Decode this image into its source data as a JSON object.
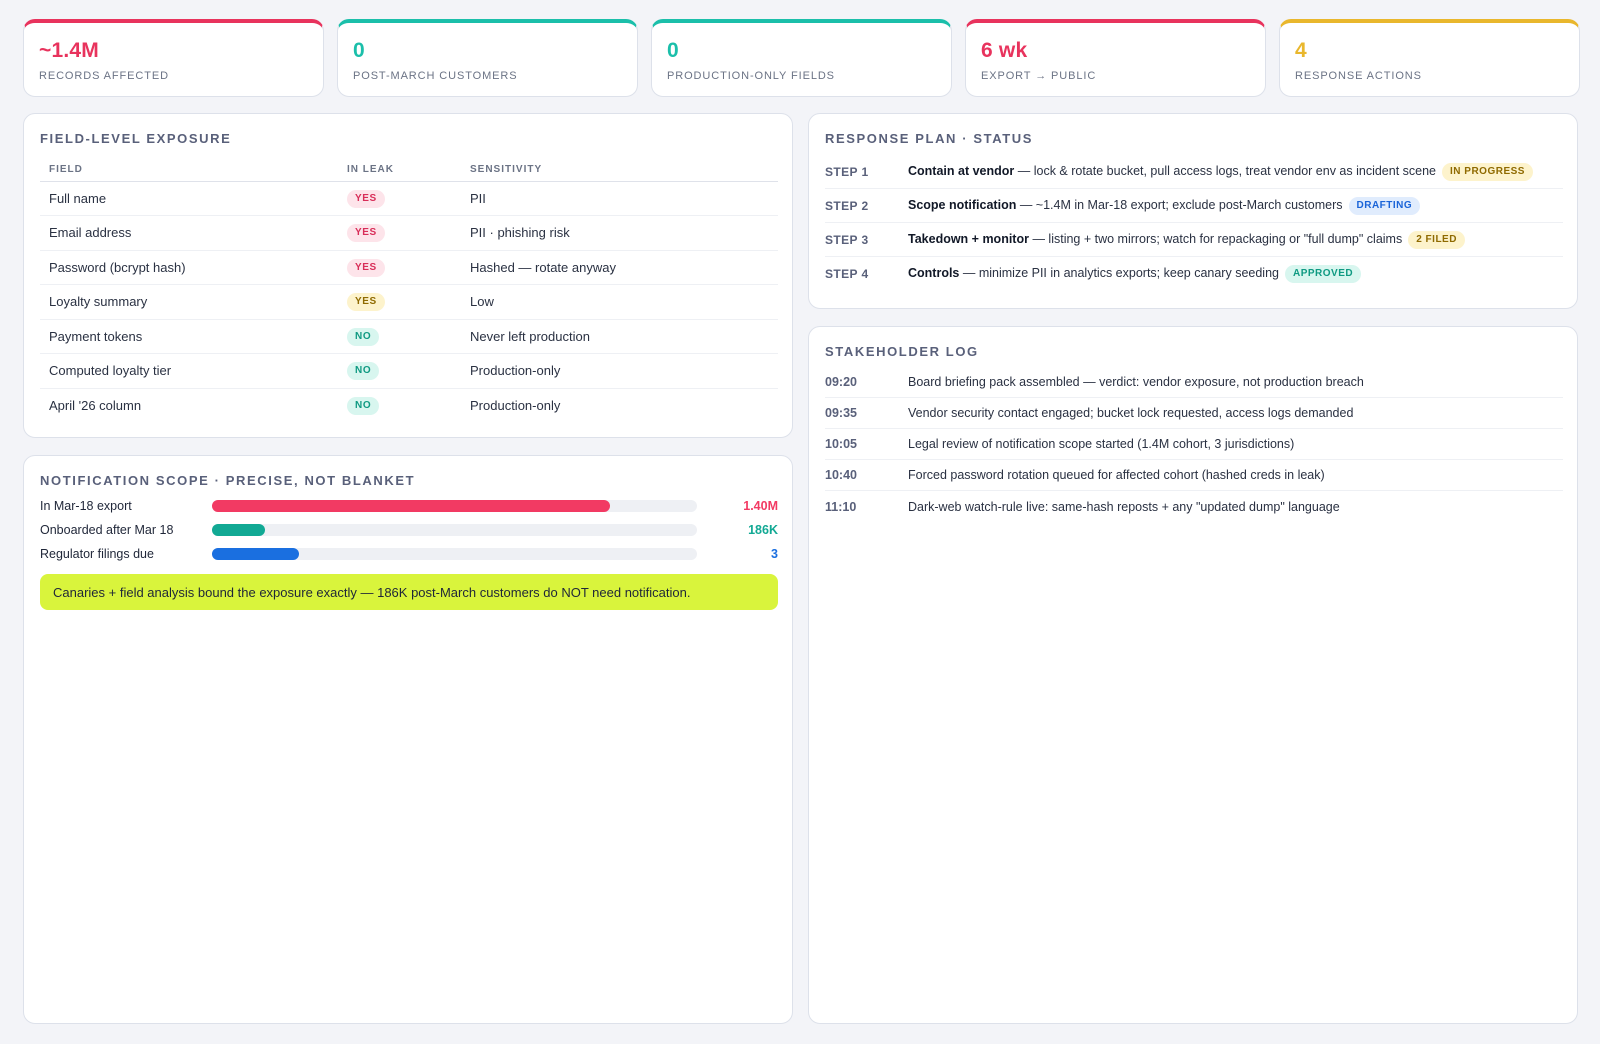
{
  "kpis": [
    {
      "value": "~1.4M",
      "label": "RECORDS AFFECTED",
      "color": "#e8335d"
    },
    {
      "value": "0",
      "label": "POST-MARCH CUSTOMERS",
      "color": "#1bbfaa"
    },
    {
      "value": "0",
      "label": "PRODUCTION-ONLY FIELDS",
      "color": "#1bbfaa"
    },
    {
      "value": "6 wk",
      "label": "EXPORT → PUBLIC",
      "color": "#e8335d"
    },
    {
      "value": "4",
      "label": "RESPONSE ACTIONS",
      "color": "#e9b72d"
    }
  ],
  "field_exposure": {
    "title": "FIELD-LEVEL EXPOSURE",
    "columns": [
      "FIELD",
      "IN LEAK",
      "SENSITIVITY"
    ],
    "rows": [
      {
        "field": "Full name",
        "in_leak": "YES",
        "sensitivity": "PII"
      },
      {
        "field": "Email address",
        "in_leak": "YES",
        "sensitivity": "PII · phishing risk"
      },
      {
        "field": "Password (bcrypt hash)",
        "in_leak": "YES",
        "sensitivity": "Hashed — rotate anyway"
      },
      {
        "field": "Loyalty summary",
        "in_leak": "YES",
        "sensitivity": "Low"
      },
      {
        "field": "Payment tokens",
        "in_leak": "NO",
        "sensitivity": "Never left production"
      },
      {
        "field": "Computed loyalty tier",
        "in_leak": "NO",
        "sensitivity": "Production-only"
      },
      {
        "field": "April '26 column",
        "in_leak": "NO",
        "sensitivity": "Production-only"
      }
    ]
  },
  "notification_scope": {
    "title": "NOTIFICATION SCOPE · PRECISE, NOT BLANKET",
    "bars": [
      {
        "label": "In Mar-18 export",
        "value": "1.40M",
        "fraction": 0.82,
        "color": "#f23a63"
      },
      {
        "label": "Onboarded after Mar 18",
        "value": "186K",
        "fraction": 0.11,
        "color": "#12a994"
      },
      {
        "label": "Regulator filings due",
        "value": "3",
        "fraction": 0.18,
        "color": "#1a6fe0"
      }
    ],
    "callout": "Canaries + field analysis bound the exposure exactly — 186K post-March customers do NOT need notification."
  },
  "response_plan": {
    "title": "RESPONSE PLAN · STATUS",
    "steps": [
      {
        "num": "STEP 1",
        "head": "Contain at vendor",
        "text": " — lock & rotate bucket, pull access logs, treat vendor env as incident scene",
        "tag": "IN PROGRESS"
      },
      {
        "num": "STEP 2",
        "head": "Scope notification",
        "text": " — ~1.4M in Mar-18 export; exclude post-March customers",
        "tag": "DRAFTING"
      },
      {
        "num": "STEP 3",
        "head": "Takedown + monitor",
        "text": " — listing + two mirrors; watch for repackaging or \"full dump\" claims",
        "tag": "2 FILED"
      },
      {
        "num": "STEP 4",
        "head": "Controls",
        "text": " — minimize PII in analytics exports; keep canary seeding",
        "tag": "APPROVED"
      }
    ]
  },
  "stakeholder_log": {
    "title": "STAKEHOLDER LOG",
    "entries": [
      {
        "time": "09:20",
        "text": "Board briefing pack assembled — verdict: vendor exposure, not production breach"
      },
      {
        "time": "09:35",
        "text": "Vendor security contact engaged; bucket lock requested, access logs demanded"
      },
      {
        "time": "10:05",
        "text": "Legal review of notification scope started (1.4M cohort, 3 jurisdictions)"
      },
      {
        "time": "10:40",
        "text": "Forced password rotation queued for affected cohort (hashed creds in leak)"
      },
      {
        "time": "11:10",
        "text": "Dark-web watch-rule live: same-hash reposts + any \"updated dump\" language"
      }
    ]
  }
}
